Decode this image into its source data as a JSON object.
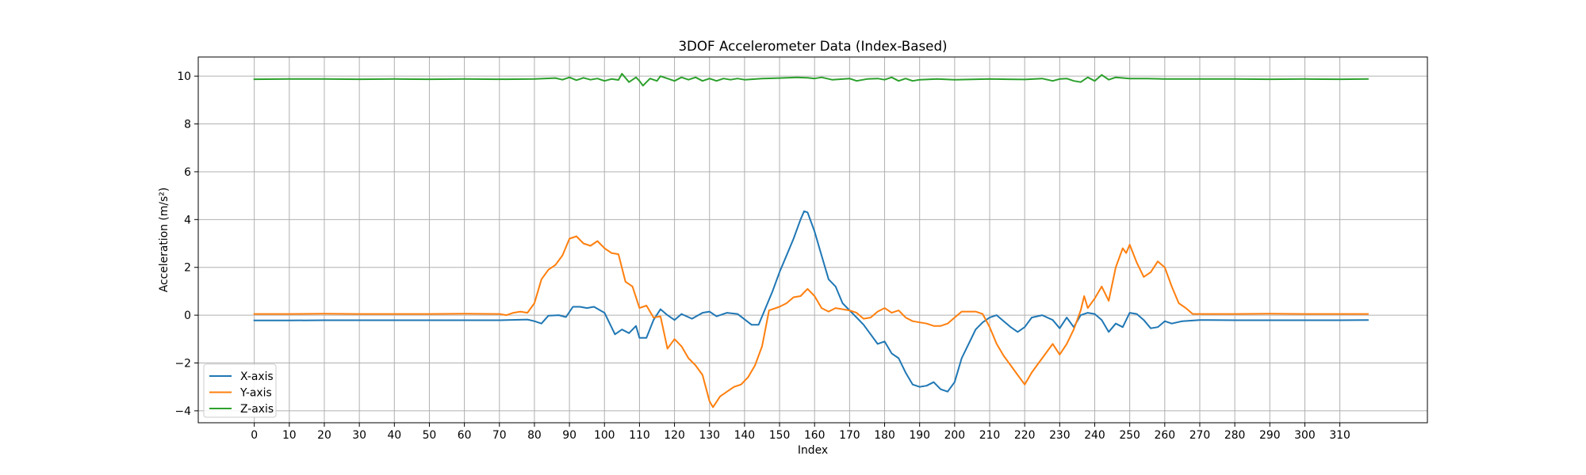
{
  "chart_data": {
    "type": "line",
    "title": "3DOF Accelerometer Data (Index-Based)",
    "xlabel": "Index",
    "ylabel": "Acceleration (m/s²)",
    "xlim": [
      -16,
      335
    ],
    "ylim": [
      -4.5,
      10.8
    ],
    "xticks": [
      0,
      10,
      20,
      30,
      40,
      50,
      60,
      70,
      80,
      90,
      100,
      110,
      120,
      130,
      140,
      150,
      160,
      170,
      180,
      190,
      200,
      210,
      220,
      230,
      240,
      250,
      260,
      270,
      280,
      290,
      300,
      310
    ],
    "yticks": [
      -4,
      -2,
      0,
      2,
      4,
      6,
      8,
      10
    ],
    "ytick_labels": [
      "−4",
      "−2",
      "0",
      "2",
      "4",
      "6",
      "8",
      "10"
    ],
    "grid": true,
    "legend": {
      "position": "lower-left",
      "entries": [
        "X-axis",
        "Y-axis",
        "Z-axis"
      ]
    },
    "series": [
      {
        "name": "X-axis",
        "color": "#1f77b4",
        "points": [
          [
            0,
            -0.22
          ],
          [
            10,
            -0.22
          ],
          [
            20,
            -0.21
          ],
          [
            30,
            -0.21
          ],
          [
            40,
            -0.21
          ],
          [
            50,
            -0.21
          ],
          [
            60,
            -0.21
          ],
          [
            70,
            -0.21
          ],
          [
            78,
            -0.18
          ],
          [
            80,
            -0.25
          ],
          [
            82,
            -0.35
          ],
          [
            84,
            -0.02
          ],
          [
            87,
            0.0
          ],
          [
            89,
            -0.08
          ],
          [
            91,
            0.35
          ],
          [
            93,
            0.35
          ],
          [
            95,
            0.3
          ],
          [
            97,
            0.35
          ],
          [
            100,
            0.1
          ],
          [
            103,
            -0.8
          ],
          [
            105,
            -0.6
          ],
          [
            107,
            -0.75
          ],
          [
            109,
            -0.45
          ],
          [
            110,
            -0.95
          ],
          [
            112,
            -0.95
          ],
          [
            114,
            -0.2
          ],
          [
            116,
            0.25
          ],
          [
            118,
            0.0
          ],
          [
            120,
            -0.2
          ],
          [
            122,
            0.05
          ],
          [
            125,
            -0.15
          ],
          [
            128,
            0.1
          ],
          [
            130,
            0.15
          ],
          [
            132,
            -0.05
          ],
          [
            135,
            0.1
          ],
          [
            138,
            0.05
          ],
          [
            142,
            -0.4
          ],
          [
            144,
            -0.4
          ],
          [
            146,
            0.3
          ],
          [
            148,
            1.0
          ],
          [
            150,
            1.8
          ],
          [
            152,
            2.5
          ],
          [
            154,
            3.2
          ],
          [
            156,
            4.0
          ],
          [
            157,
            4.35
          ],
          [
            158,
            4.3
          ],
          [
            160,
            3.5
          ],
          [
            162,
            2.5
          ],
          [
            164,
            1.5
          ],
          [
            166,
            1.2
          ],
          [
            168,
            0.5
          ],
          [
            170,
            0.2
          ],
          [
            172,
            -0.1
          ],
          [
            174,
            -0.4
          ],
          [
            176,
            -0.8
          ],
          [
            178,
            -1.2
          ],
          [
            180,
            -1.1
          ],
          [
            182,
            -1.6
          ],
          [
            184,
            -1.8
          ],
          [
            186,
            -2.4
          ],
          [
            188,
            -2.9
          ],
          [
            190,
            -3.0
          ],
          [
            192,
            -2.95
          ],
          [
            194,
            -2.8
          ],
          [
            196,
            -3.1
          ],
          [
            198,
            -3.2
          ],
          [
            200,
            -2.8
          ],
          [
            202,
            -1.8
          ],
          [
            204,
            -1.2
          ],
          [
            206,
            -0.6
          ],
          [
            208,
            -0.3
          ],
          [
            210,
            -0.1
          ],
          [
            212,
            0.0
          ],
          [
            214,
            -0.25
          ],
          [
            216,
            -0.5
          ],
          [
            218,
            -0.7
          ],
          [
            220,
            -0.5
          ],
          [
            222,
            -0.1
          ],
          [
            225,
            0.0
          ],
          [
            228,
            -0.2
          ],
          [
            230,
            -0.55
          ],
          [
            232,
            -0.1
          ],
          [
            234,
            -0.5
          ],
          [
            236,
            0.0
          ],
          [
            238,
            0.1
          ],
          [
            240,
            0.05
          ],
          [
            242,
            -0.2
          ],
          [
            244,
            -0.7
          ],
          [
            246,
            -0.35
          ],
          [
            248,
            -0.5
          ],
          [
            250,
            0.1
          ],
          [
            252,
            0.05
          ],
          [
            254,
            -0.2
          ],
          [
            256,
            -0.55
          ],
          [
            258,
            -0.5
          ],
          [
            260,
            -0.25
          ],
          [
            262,
            -0.35
          ],
          [
            265,
            -0.25
          ],
          [
            270,
            -0.2
          ],
          [
            280,
            -0.21
          ],
          [
            290,
            -0.21
          ],
          [
            300,
            -0.21
          ],
          [
            310,
            -0.21
          ],
          [
            318,
            -0.2
          ]
        ]
      },
      {
        "name": "Y-axis",
        "color": "#ff7f0e",
        "points": [
          [
            0,
            0.05
          ],
          [
            10,
            0.05
          ],
          [
            20,
            0.06
          ],
          [
            30,
            0.05
          ],
          [
            40,
            0.05
          ],
          [
            50,
            0.05
          ],
          [
            60,
            0.06
          ],
          [
            70,
            0.05
          ],
          [
            72,
            0.0
          ],
          [
            74,
            0.1
          ],
          [
            76,
            0.15
          ],
          [
            78,
            0.1
          ],
          [
            80,
            0.5
          ],
          [
            82,
            1.5
          ],
          [
            84,
            1.9
          ],
          [
            86,
            2.1
          ],
          [
            88,
            2.5
          ],
          [
            90,
            3.2
          ],
          [
            92,
            3.3
          ],
          [
            94,
            3.0
          ],
          [
            96,
            2.9
          ],
          [
            98,
            3.1
          ],
          [
            100,
            2.8
          ],
          [
            102,
            2.6
          ],
          [
            104,
            2.55
          ],
          [
            106,
            1.4
          ],
          [
            108,
            1.2
          ],
          [
            110,
            0.3
          ],
          [
            112,
            0.4
          ],
          [
            114,
            -0.1
          ],
          [
            116,
            -0.05
          ],
          [
            118,
            -1.4
          ],
          [
            120,
            -1.0
          ],
          [
            122,
            -1.3
          ],
          [
            124,
            -1.8
          ],
          [
            126,
            -2.1
          ],
          [
            128,
            -2.5
          ],
          [
            130,
            -3.6
          ],
          [
            131,
            -3.85
          ],
          [
            133,
            -3.4
          ],
          [
            135,
            -3.2
          ],
          [
            137,
            -3.0
          ],
          [
            139,
            -2.9
          ],
          [
            141,
            -2.6
          ],
          [
            143,
            -2.1
          ],
          [
            145,
            -1.3
          ],
          [
            147,
            0.2
          ],
          [
            150,
            0.35
          ],
          [
            152,
            0.5
          ],
          [
            154,
            0.75
          ],
          [
            156,
            0.8
          ],
          [
            158,
            1.1
          ],
          [
            160,
            0.8
          ],
          [
            162,
            0.3
          ],
          [
            164,
            0.15
          ],
          [
            166,
            0.3
          ],
          [
            168,
            0.25
          ],
          [
            170,
            0.2
          ],
          [
            172,
            0.1
          ],
          [
            174,
            -0.15
          ],
          [
            176,
            -0.1
          ],
          [
            178,
            0.15
          ],
          [
            180,
            0.3
          ],
          [
            182,
            0.1
          ],
          [
            184,
            0.2
          ],
          [
            186,
            -0.1
          ],
          [
            188,
            -0.25
          ],
          [
            190,
            -0.3
          ],
          [
            192,
            -0.35
          ],
          [
            194,
            -0.45
          ],
          [
            196,
            -0.45
          ],
          [
            198,
            -0.35
          ],
          [
            200,
            -0.1
          ],
          [
            202,
            0.15
          ],
          [
            206,
            0.15
          ],
          [
            208,
            0.05
          ],
          [
            210,
            -0.5
          ],
          [
            212,
            -1.2
          ],
          [
            214,
            -1.7
          ],
          [
            216,
            -2.1
          ],
          [
            218,
            -2.5
          ],
          [
            220,
            -2.9
          ],
          [
            222,
            -2.4
          ],
          [
            224,
            -2.0
          ],
          [
            226,
            -1.6
          ],
          [
            228,
            -1.2
          ],
          [
            230,
            -1.65
          ],
          [
            232,
            -1.2
          ],
          [
            234,
            -0.6
          ],
          [
            236,
            0.2
          ],
          [
            237,
            0.8
          ],
          [
            238,
            0.3
          ],
          [
            240,
            0.7
          ],
          [
            242,
            1.2
          ],
          [
            244,
            0.6
          ],
          [
            246,
            2.0
          ],
          [
            248,
            2.8
          ],
          [
            249,
            2.6
          ],
          [
            250,
            2.95
          ],
          [
            252,
            2.2
          ],
          [
            254,
            1.6
          ],
          [
            256,
            1.8
          ],
          [
            258,
            2.25
          ],
          [
            260,
            2.0
          ],
          [
            262,
            1.2
          ],
          [
            264,
            0.5
          ],
          [
            266,
            0.3
          ],
          [
            268,
            0.05
          ],
          [
            280,
            0.05
          ],
          [
            290,
            0.06
          ],
          [
            300,
            0.05
          ],
          [
            310,
            0.05
          ],
          [
            318,
            0.05
          ]
        ]
      },
      {
        "name": "Z-axis",
        "color": "#2ca02c",
        "points": [
          [
            0,
            9.87
          ],
          [
            10,
            9.88
          ],
          [
            20,
            9.88
          ],
          [
            30,
            9.87
          ],
          [
            40,
            9.88
          ],
          [
            50,
            9.87
          ],
          [
            60,
            9.88
          ],
          [
            70,
            9.87
          ],
          [
            80,
            9.88
          ],
          [
            86,
            9.92
          ],
          [
            88,
            9.85
          ],
          [
            90,
            9.95
          ],
          [
            92,
            9.83
          ],
          [
            94,
            9.93
          ],
          [
            96,
            9.85
          ],
          [
            98,
            9.9
          ],
          [
            100,
            9.8
          ],
          [
            102,
            9.88
          ],
          [
            104,
            9.84
          ],
          [
            105,
            10.1
          ],
          [
            107,
            9.75
          ],
          [
            109,
            9.95
          ],
          [
            110,
            9.8
          ],
          [
            111,
            9.6
          ],
          [
            113,
            9.9
          ],
          [
            115,
            9.8
          ],
          [
            116,
            10.0
          ],
          [
            118,
            9.9
          ],
          [
            120,
            9.8
          ],
          [
            122,
            9.95
          ],
          [
            124,
            9.85
          ],
          [
            126,
            9.95
          ],
          [
            128,
            9.8
          ],
          [
            130,
            9.9
          ],
          [
            132,
            9.8
          ],
          [
            134,
            9.9
          ],
          [
            136,
            9.85
          ],
          [
            138,
            9.9
          ],
          [
            140,
            9.85
          ],
          [
            145,
            9.9
          ],
          [
            150,
            9.92
          ],
          [
            155,
            9.95
          ],
          [
            158,
            9.93
          ],
          [
            160,
            9.9
          ],
          [
            162,
            9.95
          ],
          [
            165,
            9.85
          ],
          [
            170,
            9.9
          ],
          [
            172,
            9.8
          ],
          [
            175,
            9.88
          ],
          [
            178,
            9.9
          ],
          [
            180,
            9.85
          ],
          [
            182,
            9.95
          ],
          [
            184,
            9.8
          ],
          [
            186,
            9.9
          ],
          [
            188,
            9.8
          ],
          [
            190,
            9.85
          ],
          [
            195,
            9.88
          ],
          [
            200,
            9.85
          ],
          [
            210,
            9.88
          ],
          [
            220,
            9.86
          ],
          [
            225,
            9.9
          ],
          [
            228,
            9.8
          ],
          [
            230,
            9.88
          ],
          [
            232,
            9.9
          ],
          [
            234,
            9.8
          ],
          [
            236,
            9.75
          ],
          [
            238,
            9.95
          ],
          [
            240,
            9.8
          ],
          [
            242,
            10.05
          ],
          [
            244,
            9.85
          ],
          [
            246,
            9.95
          ],
          [
            250,
            9.9
          ],
          [
            255,
            9.9
          ],
          [
            260,
            9.88
          ],
          [
            270,
            9.88
          ],
          [
            280,
            9.88
          ],
          [
            290,
            9.87
          ],
          [
            300,
            9.88
          ],
          [
            310,
            9.87
          ],
          [
            318,
            9.88
          ]
        ]
      }
    ]
  }
}
